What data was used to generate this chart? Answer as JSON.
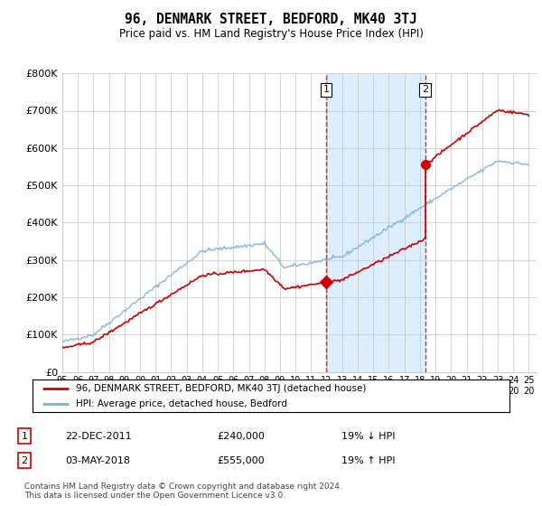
{
  "title": "96, DENMARK STREET, BEDFORD, MK40 3TJ",
  "subtitle": "Price paid vs. HM Land Registry's House Price Index (HPI)",
  "ylim": [
    0,
    800000
  ],
  "yticks": [
    0,
    100000,
    200000,
    300000,
    400000,
    500000,
    600000,
    700000,
    800000
  ],
  "ytick_labels": [
    "£0",
    "£100K",
    "£200K",
    "£300K",
    "£400K",
    "£500K",
    "£600K",
    "£700K",
    "£800K"
  ],
  "hpi_color": "#7bafd4",
  "price_color": "#cc0000",
  "vline_color": "#cc0000",
  "span_color": "#ddeeff",
  "background_color": "#ffffff",
  "grid_color": "#cccccc",
  "legend_label_price": "96, DENMARK STREET, BEDFORD, MK40 3TJ (detached house)",
  "legend_label_hpi": "HPI: Average price, detached house, Bedford",
  "annotation1_date": "22-DEC-2011",
  "annotation1_price": "£240,000",
  "annotation1_pct": "19% ↓ HPI",
  "annotation2_date": "03-MAY-2018",
  "annotation2_price": "£555,000",
  "annotation2_pct": "19% ↑ HPI",
  "footer": "Contains HM Land Registry data © Crown copyright and database right 2024.\nThis data is licensed under the Open Government Licence v3.0.",
  "sale1_year": 2011.97,
  "sale1_price": 240000,
  "sale2_year": 2018.34,
  "sale2_price": 555000,
  "xstart": 1995,
  "xend": 2025
}
